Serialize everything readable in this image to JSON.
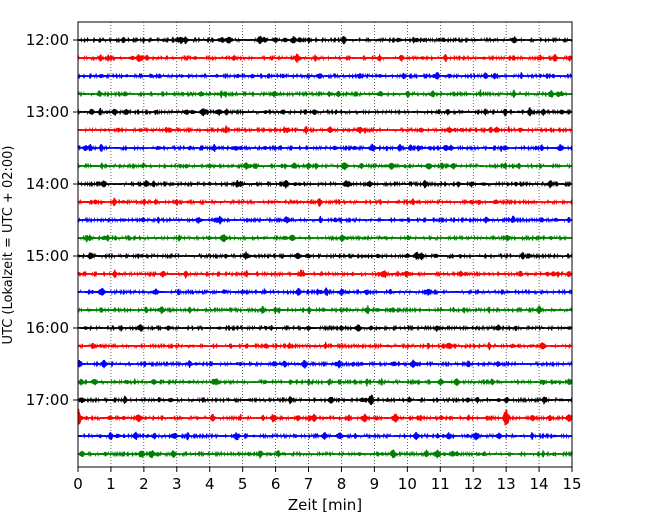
{
  "chart_data": {
    "type": "line",
    "title": "",
    "xlabel": "Zeit  [min]",
    "ylabel": "UTC (Lokalzeit = UTC + 02:00)",
    "xlim": [
      0,
      15
    ],
    "x_ticks": [
      "0",
      "1",
      "2",
      "3",
      "4",
      "5",
      "6",
      "7",
      "8",
      "9",
      "10",
      "11",
      "12",
      "13",
      "14",
      "15"
    ],
    "y_ticks": [
      "12:00",
      "13:00",
      "14:00",
      "15:00",
      "16:00",
      "17:00"
    ],
    "grid": "vertical dotted at each minute",
    "trace_interval_minutes": 15,
    "trace_colors": [
      "#000000",
      "#ff0000",
      "#0000ff",
      "#008000"
    ],
    "traces": [
      {
        "start": "12:00",
        "color": "#000000"
      },
      {
        "start": "12:15",
        "color": "#ff0000"
      },
      {
        "start": "12:30",
        "color": "#0000ff"
      },
      {
        "start": "12:45",
        "color": "#008000"
      },
      {
        "start": "13:00",
        "color": "#000000"
      },
      {
        "start": "13:15",
        "color": "#ff0000"
      },
      {
        "start": "13:30",
        "color": "#0000ff"
      },
      {
        "start": "13:45",
        "color": "#008000"
      },
      {
        "start": "14:00",
        "color": "#000000"
      },
      {
        "start": "14:15",
        "color": "#ff0000"
      },
      {
        "start": "14:30",
        "color": "#0000ff"
      },
      {
        "start": "14:45",
        "color": "#008000"
      },
      {
        "start": "15:00",
        "color": "#000000"
      },
      {
        "start": "15:15",
        "color": "#ff0000"
      },
      {
        "start": "15:30",
        "color": "#0000ff"
      },
      {
        "start": "15:45",
        "color": "#008000"
      },
      {
        "start": "16:00",
        "color": "#000000"
      },
      {
        "start": "16:15",
        "color": "#ff0000"
      },
      {
        "start": "16:30",
        "color": "#0000ff"
      },
      {
        "start": "16:45",
        "color": "#008000"
      },
      {
        "start": "17:00",
        "color": "#000000"
      },
      {
        "start": "17:15",
        "color": "#ff0000"
      },
      {
        "start": "17:30",
        "color": "#0000ff"
      },
      {
        "start": "17:45",
        "color": "#008000"
      }
    ],
    "events": [
      {
        "trace": "17:15",
        "minute": 0.0,
        "note": "large burst"
      },
      {
        "trace": "17:15",
        "minute": 13.0,
        "note": "large burst"
      },
      {
        "trace": "17:00",
        "minute": 8.9,
        "note": "burst"
      }
    ]
  }
}
